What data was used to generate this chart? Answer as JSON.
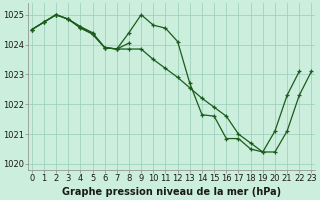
{
  "title": "Graphe pression niveau de la mer (hPa)",
  "background_color": "#cceedd",
  "grid_color": "#99ccbb",
  "line_color": "#1a5c1a",
  "ylim": [
    1019.8,
    1025.4
  ],
  "yticks": [
    1020,
    1021,
    1022,
    1023,
    1024,
    1025
  ],
  "hours": [
    0,
    1,
    2,
    3,
    4,
    5,
    6,
    7,
    8,
    9,
    10,
    11,
    12,
    13,
    14,
    15,
    16,
    17,
    18,
    19,
    20,
    21,
    22,
    23
  ],
  "series_sharp": [
    null,
    null,
    null,
    null,
    null,
    null,
    null,
    null,
    null,
    1025.0,
    1024.7,
    1024.55,
    1024.1,
    1022.7,
    null,
    null,
    null,
    null,
    null,
    null,
    null,
    null,
    null,
    null
  ],
  "series_Vshaped": [
    1024.5,
    1024.75,
    1025.0,
    1024.85,
    1024.6,
    1024.4,
    1023.9,
    1023.85,
    1024.4,
    1025.0,
    1024.65,
    1024.55,
    1024.1,
    1022.7,
    1021.65,
    1021.6,
    1020.85,
    1020.85,
    1020.5,
    1020.4,
    1021.1,
    1022.3,
    1023.1,
    null
  ],
  "series_slow": [
    1024.5,
    1024.75,
    1025.0,
    1024.85,
    1024.55,
    1024.35,
    1023.9,
    1023.85,
    1023.85,
    1023.85,
    1023.5,
    1023.2,
    1022.9,
    1022.55,
    1022.2,
    1021.9,
    1021.6,
    1021.0,
    1020.7,
    1020.4,
    1020.4,
    1021.1,
    1022.3,
    1023.1
  ],
  "series_short": [
    1024.5,
    1024.75,
    1025.0,
    1024.85,
    1024.6,
    1024.35,
    1023.9,
    1023.85,
    1024.05,
    null,
    null,
    null,
    null,
    null,
    null,
    null,
    null,
    null,
    null,
    null,
    null,
    null,
    null,
    null
  ],
  "xlabel_fontsize": 6,
  "ylabel_fontsize": 6,
  "title_fontsize": 7
}
